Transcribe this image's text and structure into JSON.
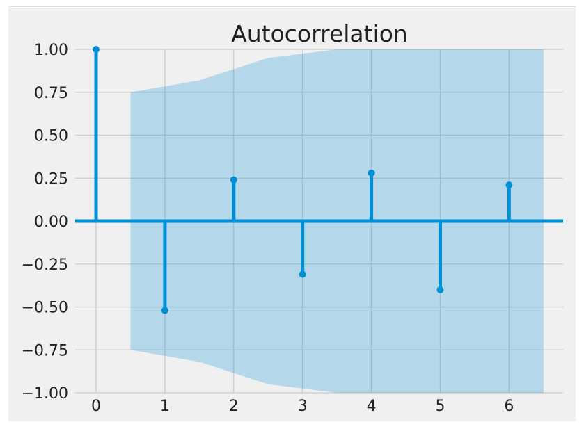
{
  "chart_data": {
    "type": "stem",
    "title": "Autocorrelation",
    "xlabel": "",
    "ylabel": "",
    "x_ticks": [
      "0",
      "1",
      "2",
      "3",
      "4",
      "5",
      "6"
    ],
    "y_ticks": [
      "1.00",
      "0.75",
      "0.50",
      "0.25",
      "0.00",
      "−0.25",
      "−0.50",
      "−0.75",
      "−1.00"
    ],
    "xlim": [
      -0.3,
      6.7
    ],
    "ylim": [
      -1.0,
      1.0
    ],
    "grid": true,
    "lags": [
      0,
      1,
      2,
      3,
      4,
      5,
      6
    ],
    "values": [
      1.0,
      -0.52,
      0.24,
      -0.31,
      0.28,
      -0.4,
      0.21
    ],
    "confidence_band": {
      "x": [
        0.5,
        1.5,
        2.5,
        3.5,
        4.5,
        5.5,
        6.5
      ],
      "upper": [
        0.75,
        0.82,
        0.95,
        1.0,
        1.0,
        1.0,
        1.0
      ],
      "lower": [
        -0.75,
        -0.82,
        -0.95,
        -1.0,
        -1.0,
        -1.0,
        -1.0
      ]
    },
    "colors": {
      "stem": "#008fd5",
      "band": "#b2d5ea",
      "background": "#f0f0f0",
      "grid": "#cbcbcb"
    }
  }
}
